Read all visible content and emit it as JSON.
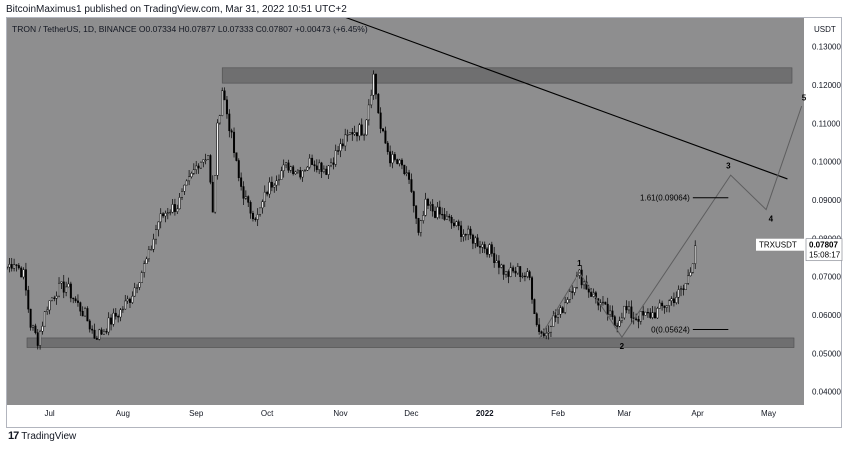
{
  "header": {
    "published": "BitcoinMaximus1 published on TradingView.com, Mar 31, 2022 10:51 UTC+2"
  },
  "footer": {
    "brand": "TradingView",
    "logo_glyph": "17"
  },
  "colors": {
    "plot_bg": "#8e8e8f",
    "candle": "#000000",
    "zone": "#6f6f70",
    "zone_border": "#4d4d4e",
    "wave": "#5e5e5f",
    "trendline": "#000000",
    "price_tag_bg": "#ffffff"
  },
  "chart_data": {
    "type": "candlestick",
    "symbol_info": {
      "title": "TRON / TetherUS, 1D, BINANCE",
      "open_label": "O",
      "open": "0.07334",
      "high_label": "H",
      "high": "0.07877",
      "low_label": "L",
      "low": "0.07333",
      "close_label": "C",
      "close": "0.07807",
      "change": "+0.00473 (+6.45%)"
    },
    "currency": "USDT",
    "ylim": [
      0.0365,
      0.1375
    ],
    "y_ticks": [
      "0.04000",
      "0.05000",
      "0.06000",
      "0.07000",
      "0.08000",
      "0.09000",
      "0.10000",
      "0.11000",
      "0.12000",
      "0.13000"
    ],
    "x_ticks": [
      {
        "label": "Jul",
        "x": "2021-07-01"
      },
      {
        "label": "Aug",
        "x": "2021-08-01"
      },
      {
        "label": "Sep",
        "x": "2021-09-01"
      },
      {
        "label": "Oct",
        "x": "2021-10-01"
      },
      {
        "label": "Nov",
        "x": "2021-11-01"
      },
      {
        "label": "Dec",
        "x": "2021-12-01"
      },
      {
        "label": "2022",
        "x": "2022-01-01",
        "bold": true
      },
      {
        "label": "Feb",
        "x": "2022-02-01"
      },
      {
        "label": "Mar",
        "x": "2022-03-01"
      },
      {
        "label": "Apr",
        "x": "2022-04-01"
      },
      {
        "label": "May",
        "x": "2022-05-01"
      }
    ],
    "x_range": [
      "2021-06-13",
      "2022-05-16"
    ],
    "price_path": [
      [
        "2021-06-13",
        0.0725
      ],
      [
        "2021-06-16",
        0.074
      ],
      [
        "2021-06-20",
        0.0705
      ],
      [
        "2021-06-23",
        0.0575
      ],
      [
        "2021-06-26",
        0.0535
      ],
      [
        "2021-06-30",
        0.0625
      ],
      [
        "2021-07-04",
        0.0665
      ],
      [
        "2021-07-08",
        0.0675
      ],
      [
        "2021-07-12",
        0.0635
      ],
      [
        "2021-07-16",
        0.06
      ],
      [
        "2021-07-20",
        0.0545
      ],
      [
        "2021-07-23",
        0.0555
      ],
      [
        "2021-07-27",
        0.0585
      ],
      [
        "2021-07-31",
        0.061
      ],
      [
        "2021-08-04",
        0.0645
      ],
      [
        "2021-08-08",
        0.07
      ],
      [
        "2021-08-12",
        0.0755
      ],
      [
        "2021-08-16",
        0.0845
      ],
      [
        "2021-08-20",
        0.0875
      ],
      [
        "2021-08-24",
        0.0885
      ],
      [
        "2021-08-28",
        0.0935
      ],
      [
        "2021-09-02",
        0.1
      ],
      [
        "2021-09-06",
        0.102
      ],
      [
        "2021-09-08",
        0.086
      ],
      [
        "2021-09-10",
        0.1085
      ],
      [
        "2021-09-12",
        0.119
      ],
      [
        "2021-09-15",
        0.1095
      ],
      [
        "2021-09-19",
        0.0955
      ],
      [
        "2021-09-23",
        0.088
      ],
      [
        "2021-09-27",
        0.0855
      ],
      [
        "2021-10-01",
        0.0925
      ],
      [
        "2021-10-05",
        0.0965
      ],
      [
        "2021-10-10",
        0.099
      ],
      [
        "2021-10-15",
        0.0975
      ],
      [
        "2021-10-20",
        0.1005
      ],
      [
        "2021-10-26",
        0.098
      ],
      [
        "2021-10-31",
        0.103
      ],
      [
        "2021-11-06",
        0.108
      ],
      [
        "2021-11-11",
        0.1085
      ],
      [
        "2021-11-15",
        0.1225
      ],
      [
        "2021-11-18",
        0.1085
      ],
      [
        "2021-11-22",
        0.101
      ],
      [
        "2021-11-27",
        0.0985
      ],
      [
        "2021-12-01",
        0.0925
      ],
      [
        "2021-12-04",
        0.0805
      ],
      [
        "2021-12-07",
        0.0885
      ],
      [
        "2021-12-12",
        0.0865
      ],
      [
        "2021-12-17",
        0.0845
      ],
      [
        "2021-12-23",
        0.0815
      ],
      [
        "2021-12-28",
        0.0795
      ],
      [
        "2022-01-02",
        0.0775
      ],
      [
        "2022-01-06",
        0.0745
      ],
      [
        "2022-01-10",
        0.0705
      ],
      [
        "2022-01-15",
        0.0715
      ],
      [
        "2022-01-20",
        0.0695
      ],
      [
        "2022-01-23",
        0.0575
      ],
      [
        "2022-01-26",
        0.0545
      ],
      [
        "2022-01-29",
        0.0585
      ],
      [
        "2022-02-02",
        0.0605
      ],
      [
        "2022-02-06",
        0.0665
      ],
      [
        "2022-02-10",
        0.0705
      ],
      [
        "2022-02-14",
        0.0665
      ],
      [
        "2022-02-18",
        0.0635
      ],
      [
        "2022-02-22",
        0.0605
      ],
      [
        "2022-02-25",
        0.0575
      ],
      [
        "2022-03-01",
        0.0615
      ],
      [
        "2022-03-05",
        0.0595
      ],
      [
        "2022-03-09",
        0.0595
      ],
      [
        "2022-03-14",
        0.0605
      ],
      [
        "2022-03-18",
        0.0625
      ],
      [
        "2022-03-22",
        0.0645
      ],
      [
        "2022-03-26",
        0.0665
      ],
      [
        "2022-03-29",
        0.0715
      ],
      [
        "2022-03-31",
        0.0781
      ]
    ],
    "resistance_zone": [
      0.1205,
      0.1245
    ],
    "support_zone": [
      0.0515,
      0.054
    ],
    "trendline": {
      "from": [
        "2021-10-26",
        0.1395
      ],
      "to": [
        "2022-05-09",
        0.0955
      ]
    },
    "wave_path": [
      [
        "2022-01-24",
        0.0538
      ],
      [
        "2022-02-10",
        0.0711
      ],
      [
        "2022-02-28",
        0.0542
      ],
      [
        "2022-04-15",
        0.0965
      ],
      [
        "2022-04-30",
        0.0875
      ],
      [
        "2022-05-15",
        0.1145
      ]
    ],
    "wave_labels": [
      {
        "text": "1",
        "x": "2022-02-10",
        "y": 0.0722,
        "pos": "above"
      },
      {
        "text": "2",
        "x": "2022-02-28",
        "y": 0.0542,
        "pos": "below"
      },
      {
        "text": "3",
        "x": "2022-04-14",
        "y": 0.0977,
        "pos": "above"
      },
      {
        "text": "4",
        "x": "2022-05-02",
        "y": 0.0875,
        "pos": "below"
      },
      {
        "text": "5",
        "x": "2022-05-16",
        "y": 0.1155,
        "pos": "above"
      }
    ],
    "fib_levels": [
      {
        "label": "1.61(0.09064)",
        "value": 0.0906
      },
      {
        "label": "0(0.05624)",
        "value": 0.0562
      }
    ],
    "fib_x_range": [
      "2022-03-30",
      "2022-04-14"
    ],
    "price_tag": {
      "symbol": "TRXUSDT",
      "price": "0.07807",
      "value": 0.07807,
      "countdown": "15:08:17"
    }
  }
}
